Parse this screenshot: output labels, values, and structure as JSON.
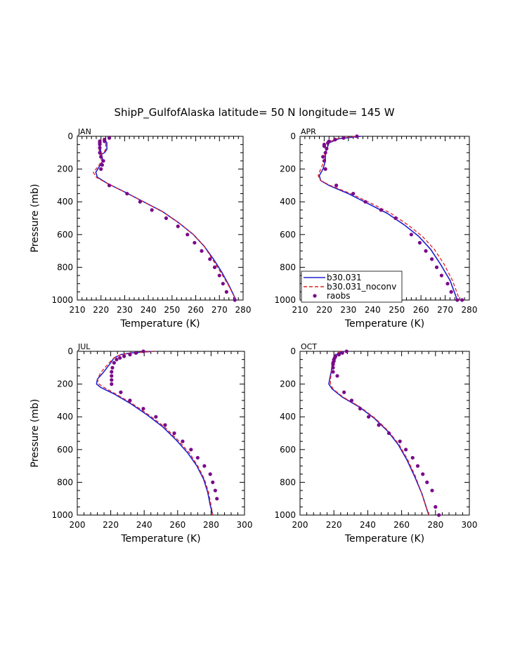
{
  "title": "ShipP_GulfofAlaska  latitude= 50 N longitude= 145 W",
  "colors": {
    "b30_031": "#2020d0",
    "noconv": "#e02020",
    "raobs": "#7a0a8a"
  },
  "legend": {
    "entries": [
      {
        "label": "b30.031",
        "style": "solid",
        "color": "#2020d0"
      },
      {
        "label": "b30.031_noconv",
        "style": "dashed",
        "color": "#e02020"
      },
      {
        "label": "raobs",
        "style": "dot",
        "color": "#7a0a8a"
      }
    ]
  },
  "chart_data": [
    {
      "type": "line",
      "panel_label": "JAN",
      "xlabel": "Temperature (K)",
      "ylabel": "Pressure (mb)",
      "xlim": [
        210,
        280
      ],
      "ylim": [
        0,
        1000
      ],
      "y_inverted": true,
      "xticks": [
        210,
        220,
        230,
        240,
        250,
        260,
        270,
        280
      ],
      "yticks": [
        0,
        200,
        400,
        600,
        800,
        1000
      ],
      "series": [
        {
          "name": "b30.031",
          "style": "solid",
          "x": [
            221,
            222.5,
            222.5,
            221.5,
            220.2,
            219.3,
            219.5,
            220.2,
            220.8,
            219.5,
            217.8,
            218.5,
            223,
            230,
            238,
            246,
            253,
            259,
            263.5,
            267.5,
            271,
            274,
            277
          ],
          "y": [
            10,
            40,
            80,
            100,
            110,
            100,
            60,
            110,
            150,
            180,
            220,
            250,
            290,
            340,
            400,
            460,
            530,
            600,
            670,
            750,
            830,
            910,
            1000
          ]
        },
        {
          "name": "b30.031_noconv",
          "style": "dashed",
          "x": [
            221,
            222,
            222,
            221,
            220,
            219.5,
            219,
            219.5,
            220.3,
            219,
            216.8,
            218,
            223,
            230,
            238,
            246,
            253,
            259,
            263.5,
            267,
            270.5,
            273.8,
            277
          ],
          "y": [
            10,
            40,
            80,
            100,
            110,
            100,
            60,
            110,
            150,
            180,
            220,
            250,
            290,
            340,
            400,
            460,
            530,
            600,
            670,
            750,
            830,
            910,
            1000
          ]
        },
        {
          "name": "raobs",
          "style": "points",
          "x": [
            223.5,
            221.5,
            221.5,
            219.5,
            219.5,
            219.5,
            219.5,
            219.5,
            220,
            221,
            220.5,
            220,
            223.5,
            231,
            236.5,
            241.5,
            247.5,
            252.5,
            256.5,
            259.5,
            262.5,
            266,
            268,
            270,
            271.5,
            273,
            276.5
          ],
          "y": [
            10,
            20,
            30,
            30,
            40,
            50,
            70,
            100,
            125,
            150,
            175,
            200,
            300,
            350,
            400,
            450,
            500,
            550,
            600,
            650,
            700,
            750,
            800,
            850,
            900,
            950,
            1000
          ]
        }
      ]
    },
    {
      "type": "line",
      "panel_label": "APR",
      "xlabel": "Temperature (K)",
      "ylabel": "",
      "xlim": [
        210,
        280
      ],
      "ylim": [
        0,
        1000
      ],
      "y_inverted": true,
      "xticks": [
        210,
        220,
        230,
        240,
        250,
        260,
        270,
        280
      ],
      "yticks": [
        0,
        200,
        400,
        600,
        800,
        1000
      ],
      "series": [
        {
          "name": "b30.031",
          "style": "solid",
          "x": [
            235,
            226,
            222,
            221,
            220.5,
            220.5,
            219.5,
            218,
            218.5,
            222,
            230,
            238,
            246,
            253,
            259,
            264,
            268,
            272,
            275
          ],
          "y": [
            0,
            15,
            40,
            80,
            110,
            150,
            200,
            240,
            270,
            300,
            350,
            410,
            470,
            540,
            610,
            690,
            780,
            880,
            1000
          ]
        },
        {
          "name": "b30.031_noconv",
          "style": "dashed",
          "x": [
            233,
            225,
            221.5,
            220.8,
            220.3,
            220,
            218.5,
            217.5,
            218.5,
            222.5,
            231,
            239.5,
            247.5,
            254.5,
            260.5,
            265.5,
            269.5,
            273,
            276
          ],
          "y": [
            0,
            15,
            40,
            80,
            110,
            150,
            200,
            240,
            270,
            300,
            350,
            410,
            470,
            540,
            610,
            690,
            780,
            880,
            1000
          ]
        },
        {
          "name": "raobs",
          "style": "points",
          "x": [
            233.5,
            228,
            224.5,
            222,
            221.5,
            220,
            220,
            221,
            220.5,
            219.5,
            220,
            220.5,
            225,
            232,
            237,
            243.5,
            249.5,
            256,
            259.5,
            262,
            264.5,
            266.5,
            268.5,
            271,
            272.5,
            275,
            277
          ],
          "y": [
            0,
            10,
            20,
            30,
            40,
            50,
            60,
            75,
            100,
            125,
            150,
            200,
            300,
            350,
            400,
            450,
            500,
            600,
            650,
            700,
            750,
            800,
            850,
            900,
            950,
            1000,
            1000
          ]
        }
      ]
    },
    {
      "type": "line",
      "panel_label": "JUL",
      "xlabel": "Temperature (K)",
      "ylabel": "Pressure (mb)",
      "xlim": [
        200,
        300
      ],
      "ylim": [
        0,
        1000
      ],
      "y_inverted": true,
      "xticks": [
        200,
        220,
        240,
        260,
        280,
        300
      ],
      "yticks": [
        0,
        200,
        400,
        600,
        800,
        1000
      ],
      "series": [
        {
          "name": "b30.031",
          "style": "solid",
          "x": [
            246,
            232,
            226,
            222,
            220,
            215.5,
            212,
            211.5,
            214,
            222,
            232,
            242,
            251,
            259,
            266,
            271.5,
            275.5,
            278,
            279.5,
            281
          ],
          "y": [
            0,
            10,
            20,
            40,
            70,
            130,
            170,
            200,
            220,
            260,
            320,
            390,
            460,
            540,
            620,
            700,
            780,
            860,
            940,
            1000
          ]
        },
        {
          "name": "b30.031_noconv",
          "style": "dashed",
          "x": [
            246,
            232,
            226,
            222,
            219,
            214,
            212,
            213,
            216,
            223,
            233,
            243,
            252,
            260,
            267,
            272,
            276,
            278.5,
            280,
            281
          ],
          "y": [
            0,
            10,
            20,
            40,
            70,
            130,
            170,
            200,
            220,
            260,
            320,
            390,
            460,
            540,
            620,
            700,
            780,
            860,
            940,
            1000
          ]
        },
        {
          "name": "raobs",
          "style": "points",
          "x": [
            239.5,
            235,
            231.5,
            228,
            225.5,
            223.5,
            222,
            221,
            220.5,
            220.5,
            220.5,
            220.5,
            226,
            231.5,
            239.5,
            247,
            252.5,
            258,
            263,
            268,
            272,
            276,
            279.5,
            281,
            282.5,
            283.5
          ],
          "y": [
            0,
            10,
            20,
            30,
            40,
            50,
            70,
            100,
            125,
            150,
            175,
            200,
            250,
            300,
            350,
            400,
            450,
            500,
            550,
            600,
            650,
            700,
            750,
            800,
            850,
            900
          ]
        }
      ]
    },
    {
      "type": "line",
      "panel_label": "OCT",
      "xlabel": "Temperature (K)",
      "ylabel": "",
      "xlim": [
        200,
        300
      ],
      "ylim": [
        0,
        1000
      ],
      "y_inverted": true,
      "xticks": [
        200,
        220,
        240,
        260,
        280,
        300
      ],
      "yticks": [
        0,
        200,
        400,
        600,
        800,
        1000
      ],
      "series": [
        {
          "name": "b30.031",
          "style": "solid",
          "x": [
            226,
            222,
            220,
            219,
            218.5,
            217.5,
            217,
            219,
            225,
            235,
            244,
            252,
            258,
            263,
            267.5,
            272,
            276
          ],
          "y": [
            0,
            15,
            40,
            80,
            120,
            170,
            200,
            230,
            280,
            340,
            410,
            490,
            570,
            660,
            760,
            870,
            1000
          ]
        },
        {
          "name": "b30.031_noconv",
          "style": "dashed",
          "x": [
            224,
            221,
            219.5,
            219,
            218.5,
            218,
            218,
            219.5,
            225.5,
            235.5,
            244.5,
            252.5,
            258.5,
            263.5,
            268,
            272,
            276
          ],
          "y": [
            0,
            15,
            40,
            80,
            120,
            170,
            200,
            230,
            280,
            340,
            410,
            490,
            570,
            660,
            760,
            870,
            1000
          ]
        },
        {
          "name": "raobs",
          "style": "points",
          "x": [
            227.5,
            225,
            223,
            221,
            220.5,
            220,
            220,
            219.5,
            219.5,
            219.5,
            219.5,
            222,
            226,
            230.5,
            235.5,
            240.5,
            246.5,
            252.5,
            259,
            262.5,
            266.5,
            269.5,
            272.5,
            275,
            278,
            280,
            282
          ],
          "y": [
            0,
            10,
            20,
            30,
            40,
            50,
            60,
            70,
            80,
            100,
            125,
            150,
            250,
            300,
            350,
            400,
            450,
            500,
            550,
            600,
            650,
            700,
            750,
            800,
            850,
            950,
            1000
          ]
        }
      ]
    }
  ]
}
